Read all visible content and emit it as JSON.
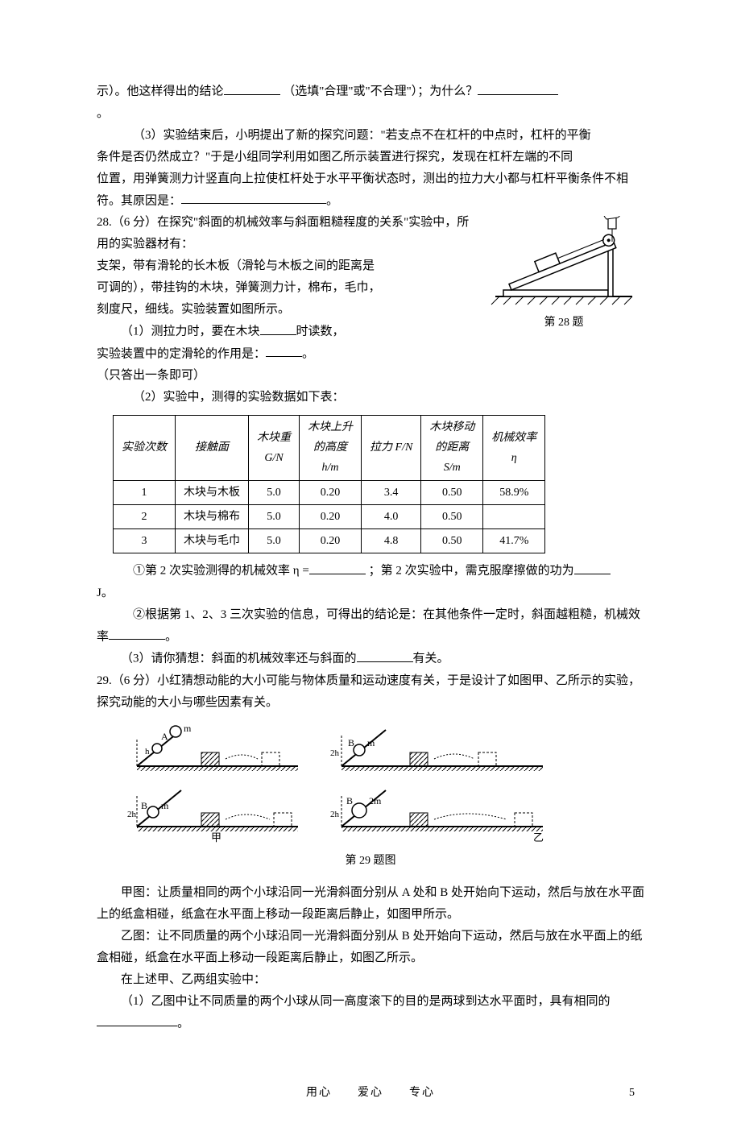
{
  "q27": {
    "line1_pre": "示）。他这样得出的结论",
    "line1_mid": "（选填\"合理\"或\"不合理\"）；为什么？",
    "line2": "。",
    "p3_a": "（3）实验结束后，小明提出了新的探究问题：\"若支点不在杠杆的中点时，杠杆的平衡",
    "p3_b": "条件是否仍然成立？\"于是小组同学利用如图乙所示装置进行探究，发现在杠杆左端的不同",
    "p3_c": "位置，用弹簧测力计竖直向上拉使杠杆处于水平平衡状态时，测出的拉力大小都与杠杆平衡条件不相符。其原因是：",
    "p3_end": "。"
  },
  "q28": {
    "title": "28.（6 分）在探究\"斜面的机械效率与斜面粗糙程度的关系\"实验中，所用的实验器材有：",
    "l2": "支架，带有滑轮的长木板（滑轮与木板之间的距离是",
    "l3": "可调的），带挂钩的木块，弹簧测力计，棉布，毛巾，",
    "l4": "刻度尺，细线。实验装置如图所示。",
    "p1_a": "（1）测拉力时，要在木块",
    "p1_b": "时读数，",
    "p1_c": "实验装置中的定滑轮的作用是：",
    "p1_d": "。",
    "p1_e": "（只答出一条即可）",
    "p2": "（2）实验中，测得的实验数据如下表：",
    "fig_label": "第 28 题",
    "table": {
      "headers": [
        "实验次数",
        "接触面",
        "木块重\nG/N",
        "木块上升\n的高度\nh/m",
        "拉力 F/N",
        "木块移动\n的距离\nS/m",
        "机械效率\nη"
      ],
      "rows": [
        [
          "1",
          "木块与木板",
          "5.0",
          "0.20",
          "3.4",
          "0.50",
          "58.9%"
        ],
        [
          "2",
          "木块与棉布",
          "5.0",
          "0.20",
          "4.0",
          "0.50",
          ""
        ],
        [
          "3",
          "木块与毛巾",
          "5.0",
          "0.20",
          "4.8",
          "0.50",
          "41.7%"
        ]
      ],
      "col_widths": [
        "60",
        "95",
        "60",
        "75",
        "75",
        "75",
        "75"
      ]
    },
    "after1_a": "①第 2 次实验测得的机械效率 η =",
    "after1_b": "；第 2 次实验中，需克服摩擦做的功为",
    "after1_c": "J。",
    "after2_a": "②根据第 1、2、3 三次实验的信息，可得出的结论是：在其他条件一定时，斜面越粗糙，机械效率",
    "after2_b": "。",
    "p3_a": "（3）请你猜想：斜面的机械效率还与斜面的",
    "p3_b": "有关。"
  },
  "q29": {
    "title": "29.（6 分）小红猜想动能的大小可能与物体质量和运动速度有关，于是设计了如图甲、乙所示的实验，探究动能的大小与哪些因素有关。",
    "caption": "第 29 题图",
    "jia_label": "甲",
    "yi_label": "乙",
    "pA": "甲图：让质量相同的两个小球沿同一光滑斜面分别从 A 处和 B 处开始向下运动，然后与放在水平面上的纸盒相碰，纸盒在水平面上移动一段距离后静止，如图甲所示。",
    "pB": "乙图：让不同质量的两个小球沿同一光滑斜面分别从 B 处开始向下运动，然后与放在水平面上的纸盒相碰，纸盒在水平面上移动一段距离后静止，如图乙所示。",
    "pC": "在上述甲、乙两组实验中：",
    "p1_a": "（1）乙图中让不同质量的两个小球从同一高度滚下的目的是两球到达水平面时，具有相同的",
    "p1_b": "。"
  },
  "footer": {
    "text": "用心　　爱心　　专心",
    "page": "5"
  },
  "colors": {
    "text": "#000000",
    "bg": "#ffffff",
    "line": "#000000"
  }
}
